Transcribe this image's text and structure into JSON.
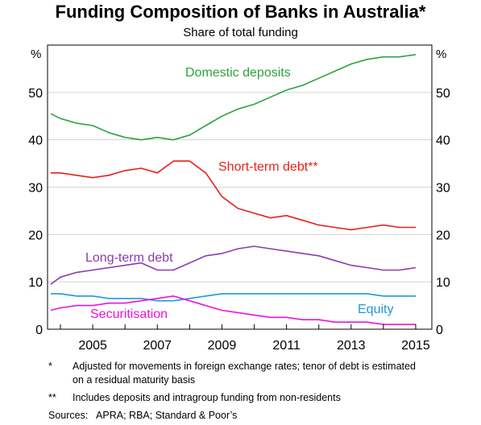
{
  "title": "Funding Composition of Banks in Australia*",
  "subtitle": "Share of total funding",
  "colors": {
    "domestic_deposits": "#2ea040",
    "short_term_debt": "#e8201a",
    "long_term_debt": "#8a3cb0",
    "securitisation": "#ee11dd",
    "equity": "#1f9ad8"
  },
  "chart_data": {
    "type": "line",
    "title": "Funding Composition of Banks in Australia*",
    "subtitle": "Share of total funding",
    "ylabel_left": "%",
    "ylabel_right": "%",
    "xlim": [
      2003.6,
      2015.5
    ],
    "ylim": [
      0,
      60
    ],
    "x_ticks": [
      "2005",
      "2007",
      "2009",
      "2011",
      "2013",
      "2015"
    ],
    "y_ticks": [
      "0",
      "10",
      "20",
      "30",
      "40",
      "50"
    ],
    "grid": true,
    "legend": "inline labels",
    "series": [
      {
        "name": "Domestic deposits",
        "color": "#2ea040",
        "x": [
          2003.7,
          2004.0,
          2004.5,
          2005.0,
          2005.5,
          2006.0,
          2006.5,
          2007.0,
          2007.5,
          2008.0,
          2008.5,
          2009.0,
          2009.5,
          2010.0,
          2010.5,
          2011.0,
          2011.5,
          2012.0,
          2012.5,
          2013.0,
          2013.5,
          2014.0,
          2014.5,
          2015.0
        ],
        "values": [
          45.5,
          44.5,
          43.5,
          43.0,
          41.5,
          40.5,
          40.0,
          40.5,
          40.0,
          41.0,
          43.0,
          45.0,
          46.5,
          47.5,
          49.0,
          50.5,
          51.5,
          53.0,
          54.5,
          56.0,
          57.0,
          57.5,
          57.5,
          58.0
        ]
      },
      {
        "name": "Short-term debt**",
        "color": "#e8201a",
        "x": [
          2003.7,
          2004.0,
          2004.5,
          2005.0,
          2005.5,
          2006.0,
          2006.5,
          2007.0,
          2007.5,
          2008.0,
          2008.5,
          2009.0,
          2009.5,
          2010.0,
          2010.5,
          2011.0,
          2011.5,
          2012.0,
          2012.5,
          2013.0,
          2013.5,
          2014.0,
          2014.5,
          2015.0
        ],
        "values": [
          33.0,
          33.0,
          32.5,
          32.0,
          32.5,
          33.5,
          34.0,
          33.0,
          35.5,
          35.5,
          33.0,
          28.0,
          25.5,
          24.5,
          23.5,
          24.0,
          23.0,
          22.0,
          21.5,
          21.0,
          21.5,
          22.0,
          21.5,
          21.5
        ]
      },
      {
        "name": "Long-term debt",
        "color": "#8a3cb0",
        "x": [
          2003.7,
          2004.0,
          2004.5,
          2005.0,
          2005.5,
          2006.0,
          2006.5,
          2007.0,
          2007.5,
          2008.0,
          2008.5,
          2009.0,
          2009.5,
          2010.0,
          2010.5,
          2011.0,
          2011.5,
          2012.0,
          2012.5,
          2013.0,
          2013.5,
          2014.0,
          2014.5,
          2015.0
        ],
        "values": [
          9.5,
          11.0,
          12.0,
          12.5,
          13.0,
          13.5,
          14.0,
          12.5,
          12.5,
          14.0,
          15.5,
          16.0,
          17.0,
          17.5,
          17.0,
          16.5,
          16.0,
          15.5,
          14.5,
          13.5,
          13.0,
          12.5,
          12.5,
          13.0
        ]
      },
      {
        "name": "Equity",
        "color": "#1f9ad8",
        "x": [
          2003.7,
          2004.0,
          2004.5,
          2005.0,
          2005.5,
          2006.0,
          2006.5,
          2007.0,
          2007.5,
          2008.0,
          2008.5,
          2009.0,
          2009.5,
          2010.0,
          2010.5,
          2011.0,
          2011.5,
          2012.0,
          2012.5,
          2013.0,
          2013.5,
          2014.0,
          2014.5,
          2015.0
        ],
        "values": [
          7.5,
          7.5,
          7.0,
          7.0,
          6.5,
          6.5,
          6.5,
          6.0,
          6.0,
          6.5,
          7.0,
          7.5,
          7.5,
          7.5,
          7.5,
          7.5,
          7.5,
          7.5,
          7.5,
          7.5,
          7.5,
          7.0,
          7.0,
          7.0
        ]
      },
      {
        "name": "Securitisation",
        "color": "#ee11dd",
        "x": [
          2003.7,
          2004.0,
          2004.5,
          2005.0,
          2005.5,
          2006.0,
          2006.5,
          2007.0,
          2007.5,
          2008.0,
          2008.5,
          2009.0,
          2009.5,
          2010.0,
          2010.5,
          2011.0,
          2011.5,
          2012.0,
          2012.5,
          2013.0,
          2013.5,
          2014.0,
          2014.5,
          2015.0
        ],
        "values": [
          4.0,
          4.5,
          5.0,
          5.0,
          5.5,
          5.5,
          6.0,
          6.5,
          7.0,
          6.0,
          5.0,
          4.0,
          3.5,
          3.0,
          2.5,
          2.5,
          2.0,
          2.0,
          1.5,
          1.5,
          1.5,
          1.0,
          1.0,
          1.0
        ]
      }
    ]
  },
  "labels": {
    "domestic_deposits": "Domestic deposits",
    "short_term_debt": "Short-term debt**",
    "long_term_debt": "Long-term debt",
    "securitisation": "Securitisation",
    "equity": "Equity"
  },
  "notes": {
    "star_mark": "*",
    "star_text": "Adjusted for movements in foreign exchange rates; tenor of debt is estimated on a residual maturity basis",
    "dstar_mark": "**",
    "dstar_text": "Includes deposits and intragroup funding from non-residents",
    "sources": "Sources:   APRA; RBA; Standard & Poor’s"
  }
}
